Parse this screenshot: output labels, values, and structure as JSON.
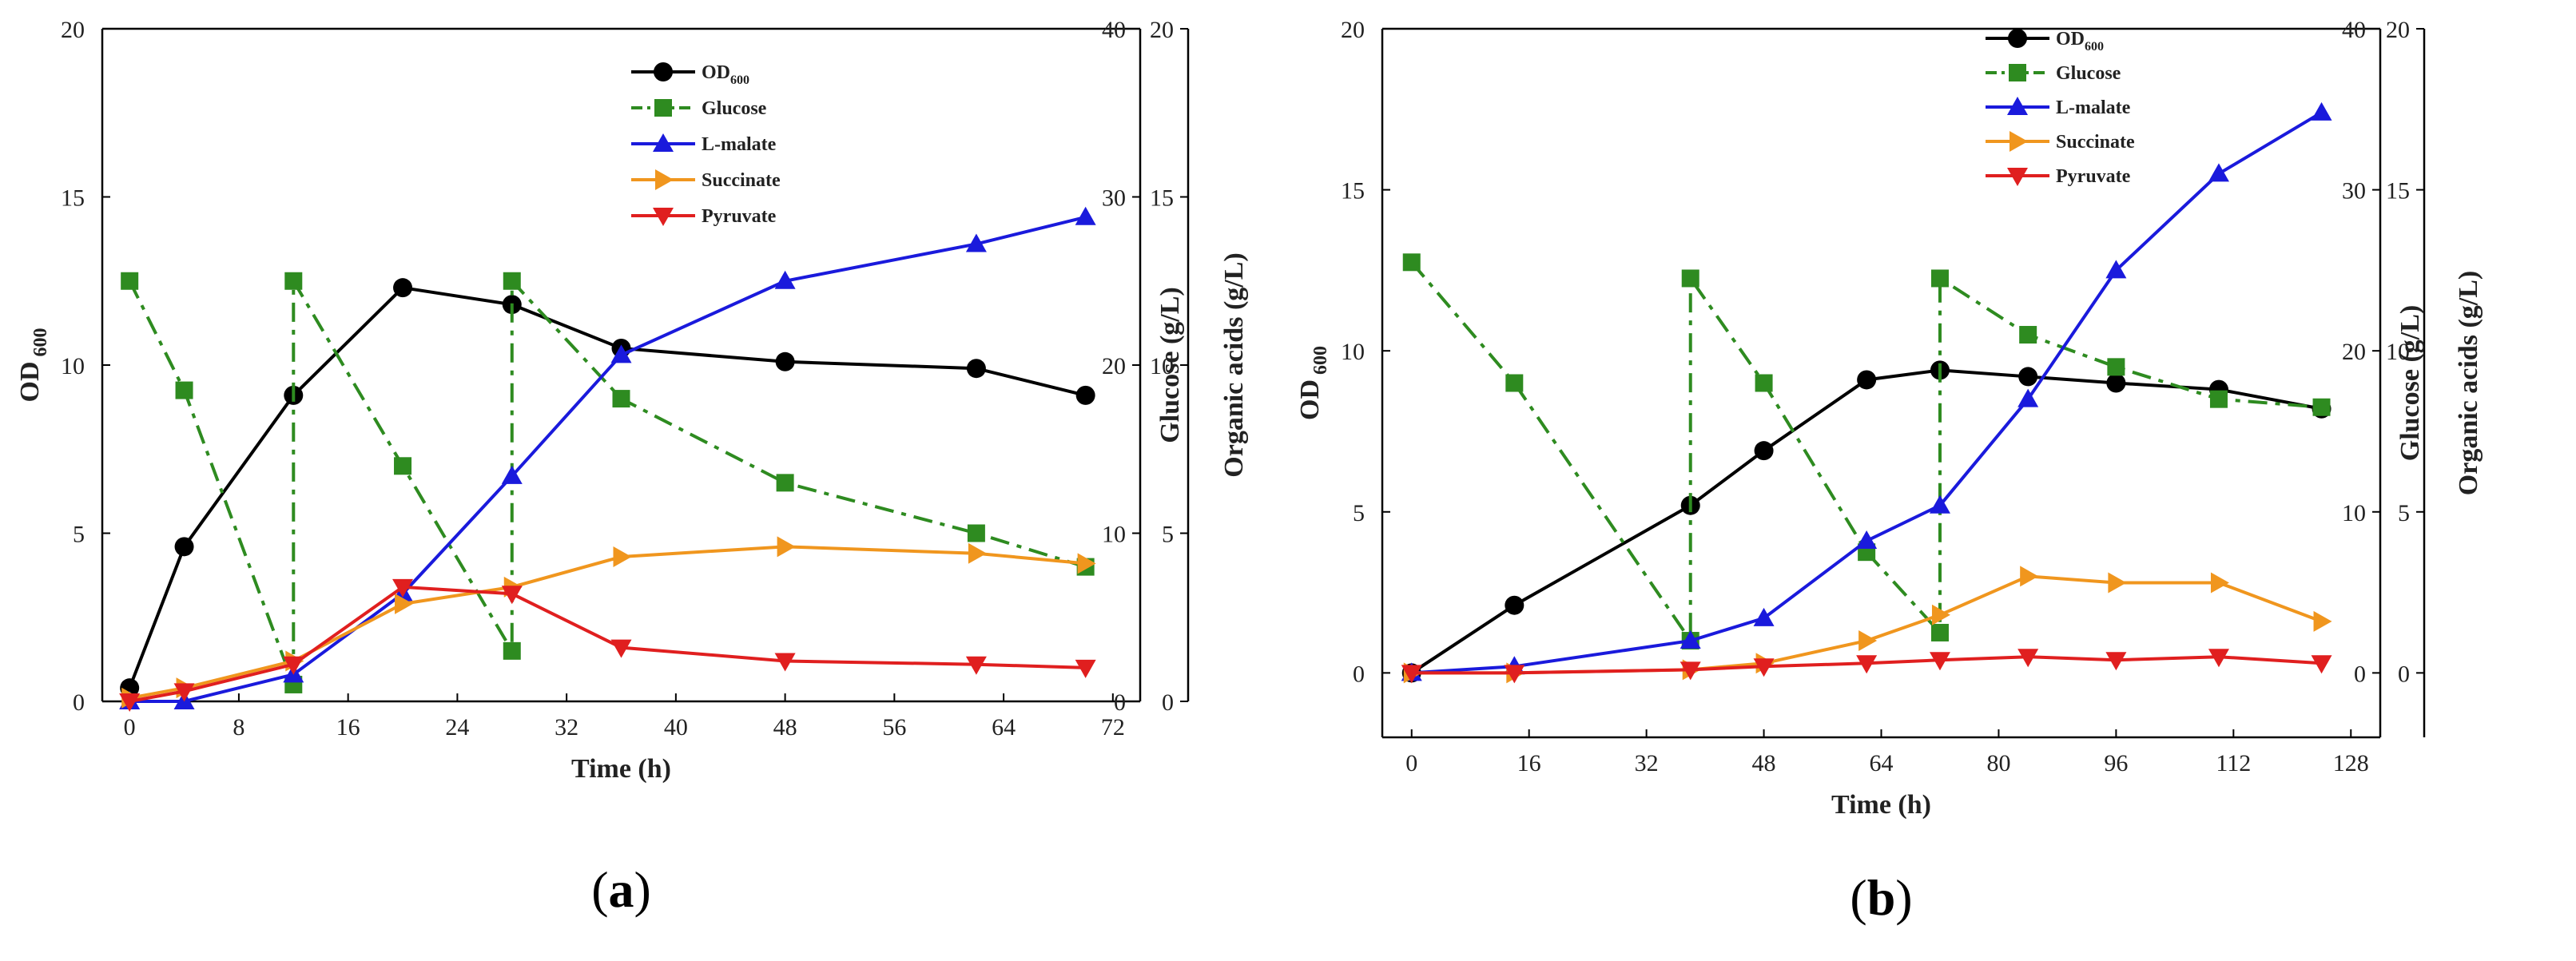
{
  "chart_data": [
    {
      "type": "line",
      "panel_label": "a",
      "xlabel": "Time (h)",
      "x_ticks": [
        0,
        8,
        16,
        24,
        32,
        40,
        48,
        56,
        64,
        72
      ],
      "xlim": [
        -2,
        74
      ],
      "ylabel_left": "OD",
      "ylabel_left_sub": "600",
      "ylim_left": [
        0,
        20
      ],
      "left_ticks": [
        0,
        5,
        10,
        15,
        20
      ],
      "ylabel_glucose": "Glucose (g/L)",
      "ylim_glucose": [
        0,
        40
      ],
      "glucose_ticks": [
        0,
        10,
        20,
        30,
        40
      ],
      "ylabel_acids": "Organic acids (g/L)",
      "ylim_acids": [
        0,
        20
      ],
      "acid_ticks": [
        0,
        5,
        10,
        15,
        20
      ],
      "series": [
        {
          "key": "od",
          "name": "OD",
          "sub": "600",
          "axis": "left",
          "color": "#000000",
          "marker": "circle",
          "dash": "solid",
          "x": [
            0,
            4,
            12,
            20,
            28,
            36,
            48,
            62,
            70
          ],
          "y": [
            0.4,
            4.6,
            9.1,
            12.3,
            11.8,
            10.5,
            10.1,
            9.9,
            9.1
          ]
        },
        {
          "key": "glucose",
          "name": "Glucose",
          "axis": "glucose",
          "color": "#2e8b20",
          "marker": "square",
          "dash": "dashdot",
          "x": [
            0,
            4,
            12,
            12,
            20,
            28,
            28,
            36,
            48,
            62,
            70
          ],
          "y": [
            25.0,
            18.5,
            1.0,
            25.0,
            14.0,
            3.0,
            25.0,
            18.0,
            13.0,
            10.0,
            8.0
          ]
        },
        {
          "key": "malate",
          "name": "L-malate",
          "axis": "acids",
          "color": "#1a1adc",
          "marker": "triangle-up",
          "dash": "solid",
          "x": [
            0,
            4,
            12,
            20,
            28,
            36,
            48,
            62,
            70
          ],
          "y": [
            0.0,
            0.0,
            0.8,
            3.2,
            6.7,
            10.3,
            12.5,
            13.6,
            14.4
          ]
        },
        {
          "key": "succinate",
          "name": "Succinate",
          "axis": "acids",
          "color": "#f0961e",
          "marker": "triangle-right",
          "dash": "solid",
          "x": [
            0,
            4,
            12,
            20,
            28,
            36,
            48,
            62,
            70
          ],
          "y": [
            0.1,
            0.4,
            1.2,
            2.9,
            3.4,
            4.3,
            4.6,
            4.4,
            4.1
          ]
        },
        {
          "key": "pyruvate",
          "name": "Pyruvate",
          "axis": "acids",
          "color": "#e01f1f",
          "marker": "triangle-down",
          "dash": "solid",
          "x": [
            0,
            4,
            12,
            20,
            28,
            36,
            48,
            62,
            70
          ],
          "y": [
            0.0,
            0.3,
            1.1,
            3.4,
            3.2,
            1.6,
            1.2,
            1.1,
            1.0
          ]
        }
      ]
    },
    {
      "type": "line",
      "panel_label": "b",
      "xlabel": "Time (h)",
      "x_ticks": [
        0,
        16,
        32,
        48,
        64,
        80,
        96,
        112,
        128
      ],
      "xlim": [
        -4,
        132
      ],
      "ylabel_left": "OD",
      "ylabel_left_sub": "600",
      "ylim_left": [
        -2,
        20
      ],
      "left_ticks": [
        0,
        5,
        10,
        15,
        20
      ],
      "ylabel_glucose": "Glucose (g/L)",
      "ylim_glucose": [
        -4,
        40
      ],
      "glucose_ticks": [
        0,
        10,
        20,
        30,
        40
      ],
      "ylabel_acids": "Organic acids (g/L)",
      "ylim_acids": [
        -2,
        20
      ],
      "acid_ticks": [
        0,
        5,
        10,
        15,
        20
      ],
      "series": [
        {
          "key": "od",
          "name": "OD",
          "sub": "600",
          "axis": "left",
          "color": "#000000",
          "marker": "circle",
          "dash": "solid",
          "x": [
            0,
            14,
            38,
            48,
            62,
            72,
            84,
            96,
            110,
            124
          ],
          "y": [
            0.0,
            2.1,
            5.2,
            6.9,
            9.1,
            9.4,
            9.2,
            9.0,
            8.8,
            8.2
          ]
        },
        {
          "key": "glucose",
          "name": "Glucose",
          "axis": "glucose",
          "color": "#2e8b20",
          "marker": "square",
          "dash": "dashdot",
          "x": [
            0,
            14,
            38,
            38,
            48,
            62,
            72,
            72,
            84,
            96,
            110,
            124
          ],
          "y": [
            25.5,
            18.0,
            2.0,
            24.5,
            18.0,
            7.5,
            2.5,
            24.5,
            21.0,
            19.0,
            17.0,
            16.5
          ]
        },
        {
          "key": "malate",
          "name": "L-malate",
          "axis": "acids",
          "color": "#1a1adc",
          "marker": "triangle-up",
          "dash": "solid",
          "x": [
            0,
            14,
            38,
            48,
            62,
            72,
            84,
            96,
            110,
            124
          ],
          "y": [
            0.0,
            0.2,
            1.0,
            1.7,
            4.1,
            5.2,
            8.5,
            12.5,
            15.5,
            17.4
          ]
        },
        {
          "key": "succinate",
          "name": "Succinate",
          "axis": "acids",
          "color": "#f0961e",
          "marker": "triangle-right",
          "dash": "solid",
          "x": [
            0,
            14,
            38,
            48,
            62,
            72,
            84,
            96,
            110,
            124
          ],
          "y": [
            0.0,
            0.0,
            0.1,
            0.3,
            1.0,
            1.8,
            3.0,
            2.8,
            2.8,
            1.6
          ]
        },
        {
          "key": "pyruvate",
          "name": "Pyruvate",
          "axis": "acids",
          "color": "#e01f1f",
          "marker": "triangle-down",
          "dash": "solid",
          "x": [
            0,
            14,
            38,
            48,
            62,
            72,
            84,
            96,
            110,
            124
          ],
          "y": [
            0.0,
            0.0,
            0.1,
            0.2,
            0.3,
            0.4,
            0.5,
            0.4,
            0.5,
            0.3
          ]
        }
      ]
    }
  ]
}
